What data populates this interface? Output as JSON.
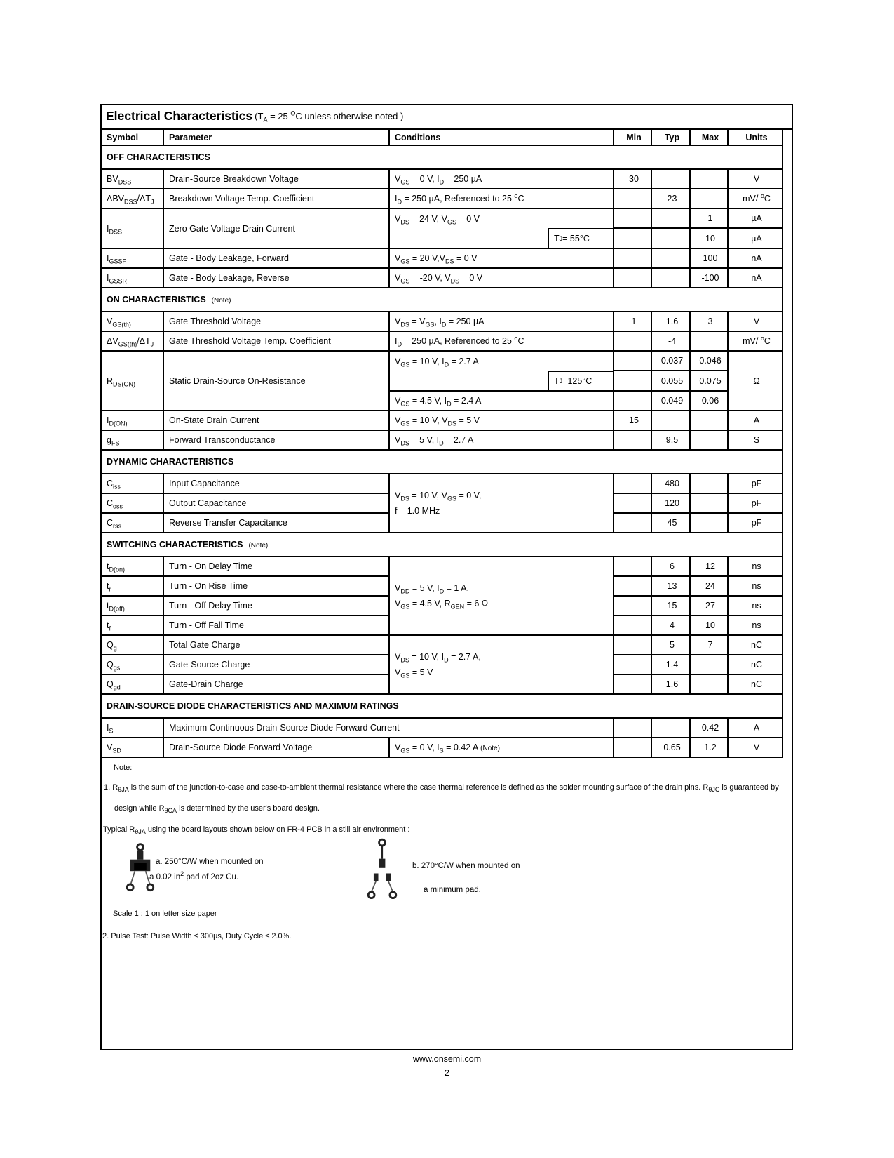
{
  "title": {
    "main": "Electrical Characteristics",
    "cond": [
      {
        "t": " (T"
      },
      {
        "t": "A",
        "s": "sub"
      },
      {
        "t": "  =  25 "
      },
      {
        "t": "O",
        "s": "sup"
      },
      {
        "t": "C unless otherwise noted )"
      }
    ]
  },
  "header": {
    "symbol": "Symbol",
    "parameter": "Parameter",
    "conditions": "Conditions",
    "min": "Min",
    "typ": "Typ",
    "max": "Max",
    "units": "Units"
  },
  "sections": {
    "off": {
      "label": "OFF CHARACTERISTICS",
      "note": ""
    },
    "on": {
      "label": "ON CHARACTERISTICS",
      "note": "(Note)"
    },
    "dynamic": {
      "label": "DYNAMIC CHARACTERISTICS",
      "note": ""
    },
    "switching": {
      "label": "SWITCHING CHARACTERISTICS",
      "note": "(Note)"
    },
    "diode": {
      "label": "DRAIN-SOURCE DIODE CHARACTERISTICS AND MAXIMUM RATINGS",
      "note": ""
    }
  },
  "rows": {
    "bvdss": {
      "symbol": [
        {
          "t": "BV"
        },
        {
          "t": "DSS",
          "s": "sub"
        }
      ],
      "parameter": "Drain-Source Breakdown Voltage",
      "conditions": [
        {
          "t": "V"
        },
        {
          "t": "GS",
          "s": "sub"
        },
        {
          "t": " = 0 V,  I"
        },
        {
          "t": "D",
          "s": "sub"
        },
        {
          "t": " = 250 µA"
        }
      ],
      "min": "30",
      "typ": "",
      "max": "",
      "units": [
        {
          "t": "V"
        }
      ]
    },
    "dbvdss": {
      "symbol": [
        {
          "t": "ΔBV"
        },
        {
          "t": "DSS",
          "s": "sub"
        },
        {
          "t": "/ΔT"
        },
        {
          "t": "J",
          "s": "sub"
        }
      ],
      "parameter": "Breakdown Voltage Temp. Coefficient",
      "conditions": [
        {
          "t": "I"
        },
        {
          "t": "D",
          "s": "sub"
        },
        {
          "t": " = 250 µA, Referenced to  25 "
        },
        {
          "t": "o",
          "s": "sup"
        },
        {
          "t": "C"
        }
      ],
      "min": "",
      "typ": "23",
      "max": "",
      "units": [
        {
          "t": "mV/ "
        },
        {
          "t": "o",
          "s": "sup"
        },
        {
          "t": "C"
        }
      ]
    },
    "idss1": {
      "symbol": [
        {
          "t": "I"
        },
        {
          "t": "DSS",
          "s": "sub"
        }
      ],
      "parameter": "Zero Gate Voltage  Drain Current",
      "conditions": [
        {
          "t": "V"
        },
        {
          "t": "DS",
          "s": "sub"
        },
        {
          "t": " = 24 V,  V"
        },
        {
          "t": "GS",
          "s": "sub"
        },
        {
          "t": " = 0 V"
        }
      ],
      "min": "",
      "typ": "",
      "max": "1",
      "units": [
        {
          "t": "µA"
        }
      ]
    },
    "idss2": {
      "subbox": [
        {
          "t": "T"
        },
        {
          "t": "J",
          "s": "sub"
        },
        {
          "t": " = 55°C"
        }
      ],
      "min": "",
      "typ": "",
      "max": "10",
      "units": [
        {
          "t": "µA"
        }
      ]
    },
    "igssf": {
      "symbol": [
        {
          "t": "I"
        },
        {
          "t": "GSSF",
          "s": "sub"
        }
      ],
      "parameter": "Gate - Body Leakage, Forward",
      "conditions": [
        {
          "t": "V"
        },
        {
          "t": "GS",
          "s": "sub"
        },
        {
          "t": " = 20 V,"
        },
        {
          "t": "V"
        },
        {
          "t": "DS",
          "s": "sub"
        },
        {
          "t": " = 0 V"
        }
      ],
      "min": "",
      "typ": "",
      "max": "100",
      "units": [
        {
          "t": "nA"
        }
      ]
    },
    "igssr": {
      "symbol": [
        {
          "t": "I"
        },
        {
          "t": "GSSR",
          "s": "sub"
        }
      ],
      "parameter": "Gate - Body Leakage, Reverse",
      "conditions": [
        {
          "t": "V"
        },
        {
          "t": "GS",
          "s": "sub"
        },
        {
          "t": " = -20 V, V"
        },
        {
          "t": "DS",
          "s": "sub"
        },
        {
          "t": " = 0 V"
        }
      ],
      "min": "",
      "typ": "",
      "max": "-100",
      "units": [
        {
          "t": "nA"
        }
      ]
    },
    "vgsth": {
      "symbol": [
        {
          "t": "V"
        },
        {
          "t": "GS(th)",
          "s": "sub"
        }
      ],
      "parameter": "Gate Threshold Voltage",
      "conditions": [
        {
          "t": "V"
        },
        {
          "t": "DS",
          "s": "sub"
        },
        {
          "t": " = V"
        },
        {
          "t": "GS",
          "s": "sub"
        },
        {
          "t": ",  I"
        },
        {
          "t": "D",
          "s": "sub"
        },
        {
          "t": " = 250 µA"
        }
      ],
      "min": "1",
      "typ": "1.6",
      "max": "3",
      "units": [
        {
          "t": "V"
        }
      ]
    },
    "dvgsth": {
      "symbol": [
        {
          "t": "ΔV"
        },
        {
          "t": "GS(th)",
          "s": "sub"
        },
        {
          "t": "/ΔT"
        },
        {
          "t": "J",
          "s": "sub"
        }
      ],
      "parameter": "Gate Threshold Voltage Temp. Coefficient",
      "conditions": [
        {
          "t": "I"
        },
        {
          "t": "D",
          "s": "sub"
        },
        {
          "t": " = 250 µA, Referenced to  25 "
        },
        {
          "t": "o",
          "s": "sup"
        },
        {
          "t": "C"
        }
      ],
      "min": "",
      "typ": "-4",
      "max": "",
      "units": [
        {
          "t": "mV/ "
        },
        {
          "t": "o",
          "s": "sup"
        },
        {
          "t": "C"
        }
      ]
    },
    "rdson1": {
      "symbol": [
        {
          "t": "R"
        },
        {
          "t": "DS(ON)",
          "s": "sub"
        }
      ],
      "parameter": "Static Drain-Source On-Resistance",
      "conditions": [
        {
          "t": "V"
        },
        {
          "t": "GS",
          "s": "sub"
        },
        {
          "t": " = 10 V,  I"
        },
        {
          "t": "D",
          "s": "sub"
        },
        {
          "t": " = 2.7 A"
        }
      ],
      "min": "",
      "typ": "0.037",
      "max": "0.046",
      "units": [
        {
          "t": "Ω"
        }
      ]
    },
    "rdson2": {
      "subbox": [
        {
          "t": "T"
        },
        {
          "t": "J",
          "s": "sub"
        },
        {
          "t": " =125°C"
        }
      ],
      "min": "",
      "typ": "0.055",
      "max": "0.075"
    },
    "rdson3": {
      "conditions": [
        {
          "t": "V"
        },
        {
          "t": "GS",
          "s": "sub"
        },
        {
          "t": " = 4.5 V,  I"
        },
        {
          "t": "D",
          "s": "sub"
        },
        {
          "t": " =  2.4 A"
        }
      ],
      "min": "",
      "typ": "0.049",
      "max": "0.06"
    },
    "idon": {
      "symbol": [
        {
          "t": "I"
        },
        {
          "t": "D(ON)",
          "s": "sub"
        }
      ],
      "parameter": "On-State Drain Current",
      "conditions": [
        {
          "t": "V"
        },
        {
          "t": "GS",
          "s": "sub"
        },
        {
          "t": " = 10 V,  V"
        },
        {
          "t": "DS",
          "s": "sub"
        },
        {
          "t": " = 5 V"
        }
      ],
      "min": "15",
      "typ": "",
      "max": "",
      "units": [
        {
          "t": "A"
        }
      ]
    },
    "gfs": {
      "symbol": [
        {
          "t": "g"
        },
        {
          "t": "FS",
          "s": "sub"
        }
      ],
      "parameter": "Forward Transconductance",
      "conditions": [
        {
          "t": "V"
        },
        {
          "t": "DS",
          "s": "sub"
        },
        {
          "t": " = 5 V,  I"
        },
        {
          "t": "D",
          "s": "sub"
        },
        {
          "t": " = 2.7 A"
        }
      ],
      "min": "",
      "typ": "9.5",
      "max": "",
      "units": [
        {
          "t": "S"
        }
      ]
    },
    "cgroup": {
      "line1": [
        {
          "t": "V"
        },
        {
          "t": "DS",
          "s": "sub"
        },
        {
          "t": " = 10 V,  V"
        },
        {
          "t": "GS",
          "s": "sub"
        },
        {
          "t": " = 0 V,"
        }
      ],
      "line2": [
        {
          "t": "f  = 1.0 MHz"
        }
      ]
    },
    "ciss": {
      "symbol": [
        {
          "t": "C"
        },
        {
          "t": "iss",
          "s": "sub"
        }
      ],
      "parameter": "Input Capacitance",
      "min": "",
      "typ": "480",
      "max": "",
      "units": [
        {
          "t": "pF"
        }
      ]
    },
    "coss": {
      "symbol": [
        {
          "t": "C"
        },
        {
          "t": "oss",
          "s": "sub"
        }
      ],
      "parameter": "Output Capacitance",
      "min": "",
      "typ": "120",
      "max": "",
      "units": [
        {
          "t": "pF"
        }
      ]
    },
    "crss": {
      "symbol": [
        {
          "t": "C"
        },
        {
          "t": "rss",
          "s": "sub"
        }
      ],
      "parameter": "Reverse Transfer Capacitance",
      "min": "",
      "typ": "45",
      "max": "",
      "units": [
        {
          "t": "pF"
        }
      ]
    },
    "tgroup": {
      "line1": [
        {
          "t": "V"
        },
        {
          "t": "DD",
          "s": "sub"
        },
        {
          "t": " = 5 V,  I"
        },
        {
          "t": "D",
          "s": "sub"
        },
        {
          "t": " = 1 A,"
        }
      ],
      "line2": [
        {
          "t": "V"
        },
        {
          "t": "GS",
          "s": "sub"
        },
        {
          "t": " = 4.5 V,  R"
        },
        {
          "t": "GEN",
          "s": "sub"
        },
        {
          "t": " = 6 Ω"
        }
      ]
    },
    "tdon": {
      "symbol": [
        {
          "t": "t"
        },
        {
          "t": "D(on)",
          "s": "sub"
        }
      ],
      "parameter": "Turn - On Delay Time",
      "min": "",
      "typ": "6",
      "max": "12",
      "units": [
        {
          "t": "ns"
        }
      ]
    },
    "tr": {
      "symbol": [
        {
          "t": "t"
        },
        {
          "t": "r",
          "s": "sub"
        }
      ],
      "parameter": "Turn - On Rise Time",
      "min": "",
      "typ": "13",
      "max": "24",
      "units": [
        {
          "t": "ns"
        }
      ]
    },
    "tdoff": {
      "symbol": [
        {
          "t": "t"
        },
        {
          "t": "D(off)",
          "s": "sub"
        }
      ],
      "parameter": "Turn - Off Delay Time",
      "min": "",
      "typ": "15",
      "max": "27",
      "units": [
        {
          "t": "ns"
        }
      ]
    },
    "tf": {
      "symbol": [
        {
          "t": "t"
        },
        {
          "t": "f",
          "s": "sub"
        }
      ],
      "parameter": "Turn - Off Fall Time",
      "min": "",
      "typ": "4",
      "max": "10",
      "units": [
        {
          "t": "ns"
        }
      ]
    },
    "qgroup": {
      "line1": [
        {
          "t": "V"
        },
        {
          "t": "DS",
          "s": "sub"
        },
        {
          "t": " = 10 V,  I"
        },
        {
          "t": "D",
          "s": "sub"
        },
        {
          "t": " = 2.7 A,"
        }
      ],
      "line2": [
        {
          "t": "V"
        },
        {
          "t": "GS",
          "s": "sub"
        },
        {
          "t": " = 5 V"
        }
      ]
    },
    "qg": {
      "symbol": [
        {
          "t": "Q"
        },
        {
          "t": "g",
          "s": "sub"
        }
      ],
      "parameter": "Total Gate Charge",
      "min": "",
      "typ": "5",
      "max": "7",
      "units": [
        {
          "t": "nC"
        }
      ]
    },
    "qgs": {
      "symbol": [
        {
          "t": "Q"
        },
        {
          "t": "gs",
          "s": "sub"
        }
      ],
      "parameter": "Gate-Source Charge",
      "min": "",
      "typ": "1.4",
      "max": "",
      "units": [
        {
          "t": "nC"
        }
      ]
    },
    "qgd": {
      "symbol": [
        {
          "t": "Q"
        },
        {
          "t": "gd",
          "s": "sub"
        }
      ],
      "parameter": "Gate-Drain Charge",
      "min": "",
      "typ": "1.6",
      "max": "",
      "units": [
        {
          "t": "nC"
        }
      ]
    },
    "is": {
      "symbol": [
        {
          "t": "I"
        },
        {
          "t": "S",
          "s": "sub"
        }
      ],
      "parameter": "Maximum Continuous Drain-Source Diode Forward Current",
      "min": "",
      "typ": "",
      "max": "0.42",
      "units": [
        {
          "t": "A"
        }
      ]
    },
    "vsd": {
      "symbol": [
        {
          "t": "V"
        },
        {
          "t": "SD",
          "s": "sub"
        }
      ],
      "parameter": "Drain-Source Diode Forward Voltage",
      "conditions": [
        {
          "t": "V"
        },
        {
          "t": "GS",
          "s": "sub"
        },
        {
          "t": " = 0 V,  I"
        },
        {
          "t": "S",
          "s": "sub"
        },
        {
          "t": " = 0.42 A  "
        },
        {
          "t": "(Note)",
          "s": "small"
        }
      ],
      "min": "",
      "typ": "0.65",
      "max": "1.2",
      "units": [
        {
          "t": "V"
        }
      ]
    }
  },
  "notes": {
    "label": "Note:",
    "n1a": [
      {
        "t": "1. R"
      },
      {
        "t": "θJA",
        "s": "sub"
      },
      {
        "t": " is the sum of the junction-to-case and case-to-ambient thermal resistance where the case thermal reference is defined as the  solder mounting surface of  the   drain pins. R"
      },
      {
        "t": "θJC",
        "s": "sub"
      },
      {
        "t": " is guaranteed by"
      }
    ],
    "n1b": [
      {
        "t": "design while R"
      },
      {
        "t": "θCA",
        "s": "sub"
      },
      {
        "t": " is determined by the user's board design."
      }
    ],
    "typical": [
      {
        "t": "Typical R"
      },
      {
        "t": "θJA",
        "s": "sub"
      },
      {
        "t": " using the board layouts shown below on FR-4 PCB in a still air environment :"
      }
    ],
    "capA1": "a. 250°C/W when mounted on",
    "capA2": [
      {
        "t": "a 0.02 in"
      },
      {
        "t": "2",
        "s": "sup"
      },
      {
        "t": " pad of 2oz Cu."
      }
    ],
    "capB1": "b. 270°C/W when mounted on",
    "capB2": "a minimum pad.",
    "scale": "Scale 1 : 1 on letter size paper",
    "n2": "2. Pulse Test: Pulse Width ≤ 300µs, Duty Cycle ≤ 2.0%."
  },
  "footer": {
    "url": "www.onsemi.com",
    "page": "2"
  }
}
